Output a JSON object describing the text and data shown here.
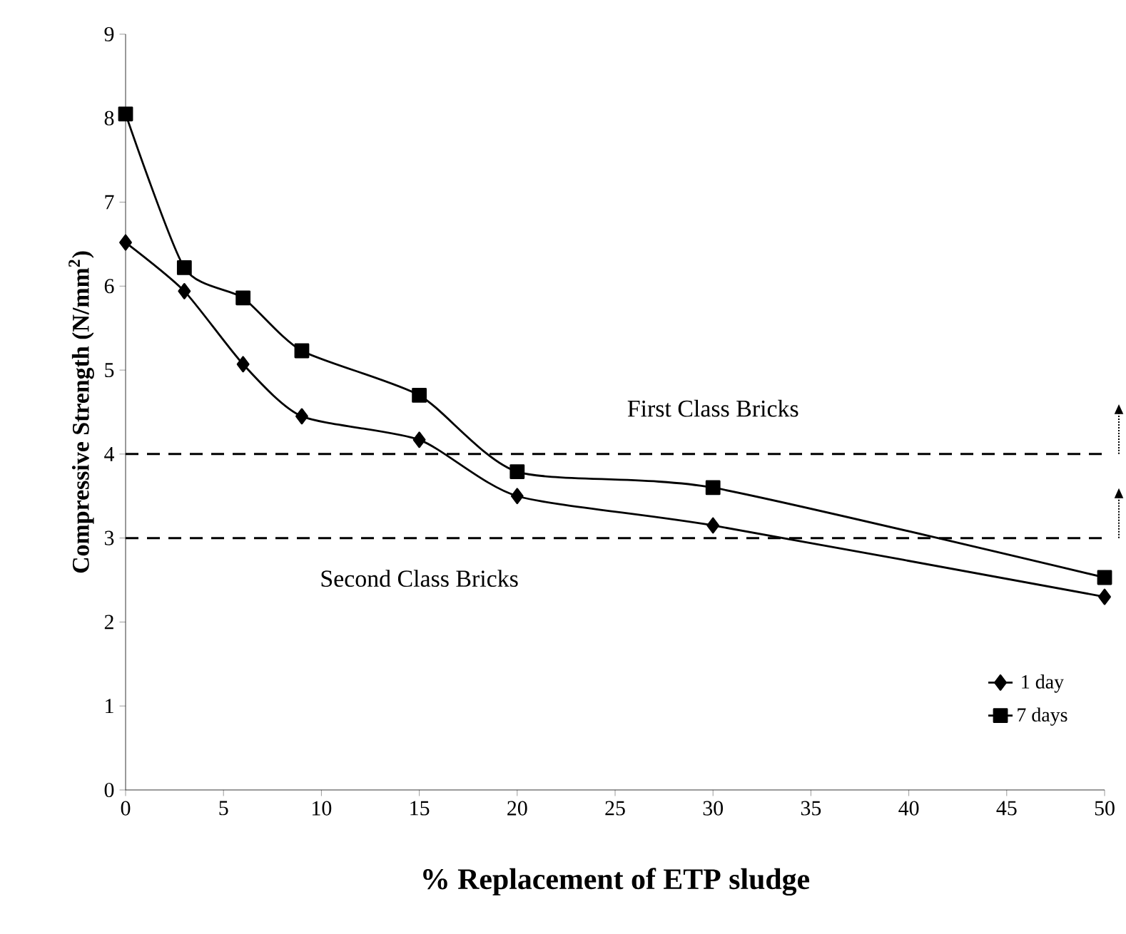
{
  "chart_data": {
    "type": "line",
    "xlabel": "% Replacement of ETP sludge",
    "ylabel": "Compressive Strength (N/mm$^{2}$)",
    "x": [
      0,
      3,
      6,
      9,
      15,
      20,
      30,
      50
    ],
    "series": [
      {
        "name": "1 day",
        "color": "#000000",
        "marker": "diamond",
        "values": [
          6.52,
          5.94,
          5.07,
          4.45,
          4.17,
          3.5,
          3.15,
          2.3
        ]
      },
      {
        "name": "7 days",
        "color": "#000000",
        "marker": "square",
        "values": [
          8.05,
          6.22,
          5.86,
          5.23,
          4.7,
          3.79,
          3.6,
          2.53
        ]
      }
    ],
    "xlim": [
      0,
      50
    ],
    "ylim": [
      0,
      9
    ],
    "xticks": [
      0,
      5,
      10,
      15,
      20,
      25,
      30,
      35,
      40,
      45,
      50
    ],
    "yticks": [
      0,
      1,
      2,
      3,
      4,
      5,
      6,
      7,
      8,
      9
    ],
    "ref_lines": [
      {
        "axis": "y",
        "value": 4,
        "line_style": "dashed"
      },
      {
        "axis": "y",
        "value": 3,
        "line_style": "dashed"
      }
    ],
    "annotations": [
      "First Class Bricks",
      "Second Class Bricks"
    ],
    "grid": false,
    "legend": "bottom right",
    "line_style": "solid"
  }
}
